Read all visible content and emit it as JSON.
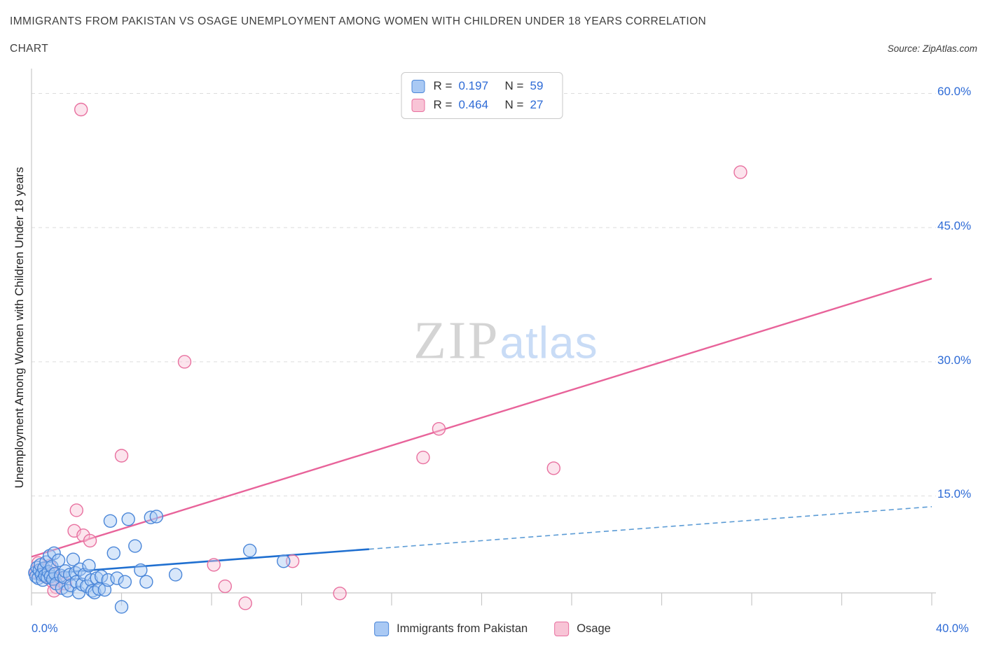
{
  "header": {
    "title_line1": "IMMIGRANTS FROM PAKISTAN VS OSAGE UNEMPLOYMENT AMONG WOMEN WITH CHILDREN UNDER 18 YEARS CORRELATION",
    "title_line2": "CHART",
    "source": "Source: ZipAtlas.com"
  },
  "watermark": {
    "zip": "ZIP",
    "atlas": "atlas"
  },
  "axes": {
    "y_label": "Unemployment Among Women with Children Under 18 years",
    "y_ticks": [
      "60.0%",
      "45.0%",
      "30.0%",
      "15.0%"
    ],
    "x_tick_left": "0.0%",
    "x_tick_right": "40.0%"
  },
  "stats_legend": {
    "rows": [
      {
        "r_label": "R =",
        "r_value": "0.197",
        "n_label": "N =",
        "n_value": "59"
      },
      {
        "r_label": "R =",
        "r_value": "0.464",
        "n_label": "N =",
        "n_value": "27"
      }
    ]
  },
  "bottom_legend": {
    "items": [
      {
        "label": "Immigrants from Pakistan"
      },
      {
        "label": "Osage"
      }
    ]
  },
  "palette": {
    "blue_fill": "#a9c9f4",
    "blue_stroke": "#4a86d8",
    "pink_fill": "#f8c4d6",
    "pink_stroke": "#e8709f",
    "blue_line": "#1f6fd0",
    "blue_line_dashed": "#5b9bd5",
    "pink_line": "#e8639a",
    "grid": "#dcdcdc",
    "axis": "#c8c8c8",
    "accent_text": "#2e6bd6"
  },
  "chart_data": {
    "type": "scatter",
    "title": "Immigrants from Pakistan vs Osage Unemployment Among Women with Children Under 18 years Correlation Chart",
    "xlabel": "Immigrants from Pakistan (%)",
    "ylabel": "Unemployment Among Women with Children Under 18 years (%)",
    "xlim": [
      0,
      40
    ],
    "ylim": [
      0,
      62
    ],
    "y_gridlines": [
      15,
      30,
      45,
      60
    ],
    "grid": "dashed horizontal",
    "legend_position": "top-center and bottom-center",
    "series": [
      {
        "name": "Immigrants from Pakistan",
        "R": 0.197,
        "N": 59,
        "points": [
          [
            0.15,
            6.4
          ],
          [
            0.2,
            6.0
          ],
          [
            0.25,
            7.0
          ],
          [
            0.3,
            5.8
          ],
          [
            0.35,
            6.7
          ],
          [
            0.4,
            7.3
          ],
          [
            0.45,
            6.2
          ],
          [
            0.5,
            5.6
          ],
          [
            0.55,
            6.9
          ],
          [
            0.6,
            6.1
          ],
          [
            0.65,
            7.6
          ],
          [
            0.7,
            5.9
          ],
          [
            0.75,
            6.5
          ],
          [
            0.8,
            8.3
          ],
          [
            0.85,
            6.0
          ],
          [
            0.9,
            7.1
          ],
          [
            0.95,
            5.7
          ],
          [
            1.0,
            8.6
          ],
          [
            1.05,
            6.3
          ],
          [
            1.1,
            5.2
          ],
          [
            1.2,
            7.8
          ],
          [
            1.3,
            6.1
          ],
          [
            1.35,
            4.7
          ],
          [
            1.45,
            5.9
          ],
          [
            1.5,
            6.6
          ],
          [
            1.6,
            4.4
          ],
          [
            1.7,
            6.2
          ],
          [
            1.75,
            5.0
          ],
          [
            1.85,
            7.9
          ],
          [
            1.95,
            6.4
          ],
          [
            2.0,
            5.4
          ],
          [
            2.1,
            4.2
          ],
          [
            2.15,
            6.8
          ],
          [
            2.25,
            5.1
          ],
          [
            2.35,
            6.2
          ],
          [
            2.45,
            4.9
          ],
          [
            2.55,
            7.2
          ],
          [
            2.65,
            5.6
          ],
          [
            2.7,
            4.4
          ],
          [
            2.8,
            4.2
          ],
          [
            2.9,
            5.8
          ],
          [
            3.0,
            4.6
          ],
          [
            3.1,
            6.0
          ],
          [
            3.25,
            4.5
          ],
          [
            3.4,
            5.6
          ],
          [
            3.5,
            12.2
          ],
          [
            3.65,
            8.6
          ],
          [
            3.8,
            5.8
          ],
          [
            4.0,
            2.6
          ],
          [
            4.15,
            5.4
          ],
          [
            4.3,
            12.4
          ],
          [
            4.6,
            9.4
          ],
          [
            4.85,
            6.7
          ],
          [
            5.1,
            5.4
          ],
          [
            5.3,
            12.6
          ],
          [
            5.55,
            12.7
          ],
          [
            6.4,
            6.2
          ],
          [
            9.7,
            8.9
          ],
          [
            11.2,
            7.7
          ]
        ]
      },
      {
        "name": "Osage",
        "R": 0.464,
        "N": 27,
        "points": [
          [
            0.2,
            6.5
          ],
          [
            0.3,
            7.5
          ],
          [
            0.5,
            6.8
          ],
          [
            0.6,
            6.0
          ],
          [
            0.8,
            7.2
          ],
          [
            0.9,
            5.5
          ],
          [
            1.0,
            6.3
          ],
          [
            1.1,
            4.8
          ],
          [
            1.3,
            5.8
          ],
          [
            1.5,
            5.2
          ],
          [
            1.0,
            4.4
          ],
          [
            1.9,
            11.1
          ],
          [
            2.0,
            13.4
          ],
          [
            2.3,
            10.6
          ],
          [
            2.6,
            10.0
          ],
          [
            2.2,
            58.2
          ],
          [
            4.0,
            19.5
          ],
          [
            6.8,
            30.0
          ],
          [
            8.1,
            7.3
          ],
          [
            8.6,
            4.9
          ],
          [
            9.5,
            3.0
          ],
          [
            11.6,
            7.7
          ],
          [
            13.7,
            4.1
          ],
          [
            17.4,
            19.3
          ],
          [
            18.1,
            22.5
          ],
          [
            23.2,
            18.1
          ],
          [
            31.5,
            51.2
          ]
        ]
      }
    ],
    "trend_lines": [
      {
        "series": "Immigrants from Pakistan",
        "solid": [
          [
            0,
            6.2
          ],
          [
            15,
            9.05
          ]
        ],
        "dashed": [
          [
            15,
            9.05
          ],
          [
            40,
            13.8
          ]
        ]
      },
      {
        "series": "Osage",
        "solid": [
          [
            0,
            8.2
          ],
          [
            40,
            39.3
          ]
        ]
      }
    ]
  }
}
